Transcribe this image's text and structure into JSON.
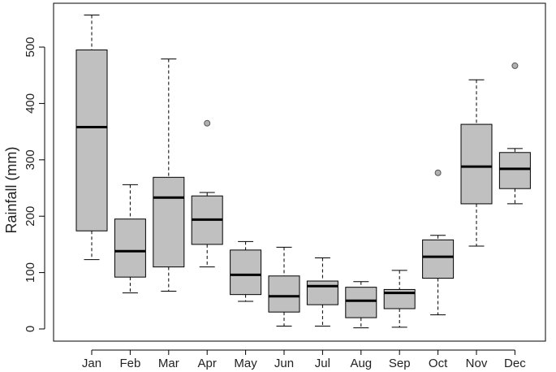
{
  "chart_data": {
    "type": "boxplot",
    "title": "",
    "xlabel": "",
    "ylabel": "Rainfall (mm)",
    "ylim": [
      0,
      560
    ],
    "yticks": [
      0,
      100,
      200,
      300,
      400,
      500
    ],
    "grid": false,
    "legend": "none",
    "colors": {
      "box_fill": "#c0c0c0",
      "stroke": "#000000",
      "outlier_fill": "#b0b0b0"
    },
    "categories": [
      "Jan",
      "Feb",
      "Mar",
      "Apr",
      "May",
      "Jun",
      "Jul",
      "Aug",
      "Sep",
      "Oct",
      "Nov",
      "Dec"
    ],
    "boxes": [
      {
        "label": "Jan",
        "min": 123,
        "q1": 174,
        "median": 358,
        "q3": 495,
        "max": 557,
        "outliers": []
      },
      {
        "label": "Feb",
        "min": 64,
        "q1": 92,
        "median": 138,
        "q3": 195,
        "max": 256,
        "outliers": []
      },
      {
        "label": "Mar",
        "min": 67,
        "q1": 110,
        "median": 233,
        "q3": 269,
        "max": 479,
        "outliers": []
      },
      {
        "label": "Apr",
        "min": 110,
        "q1": 150,
        "median": 194,
        "q3": 236,
        "max": 242,
        "outliers": [
          365
        ]
      },
      {
        "label": "May",
        "min": 49,
        "q1": 61,
        "median": 96,
        "q3": 140,
        "max": 155,
        "outliers": []
      },
      {
        "label": "Jun",
        "min": 5,
        "q1": 30,
        "median": 58,
        "q3": 94,
        "max": 145,
        "outliers": []
      },
      {
        "label": "Jul",
        "min": 5,
        "q1": 43,
        "median": 76,
        "q3": 85,
        "max": 126,
        "outliers": []
      },
      {
        "label": "Aug",
        "min": 2,
        "q1": 20,
        "median": 50,
        "q3": 74,
        "max": 84,
        "outliers": []
      },
      {
        "label": "Sep",
        "min": 3,
        "q1": 36,
        "median": 64,
        "q3": 70,
        "max": 104,
        "outliers": []
      },
      {
        "label": "Oct",
        "min": 25,
        "q1": 90,
        "median": 128,
        "q3": 158,
        "max": 166,
        "outliers": [
          277
        ]
      },
      {
        "label": "Nov",
        "min": 147,
        "q1": 222,
        "median": 288,
        "q3": 363,
        "max": 442,
        "outliers": []
      },
      {
        "label": "Dec",
        "min": 222,
        "q1": 249,
        "median": 284,
        "q3": 313,
        "max": 320,
        "outliers": [
          467
        ]
      }
    ]
  }
}
